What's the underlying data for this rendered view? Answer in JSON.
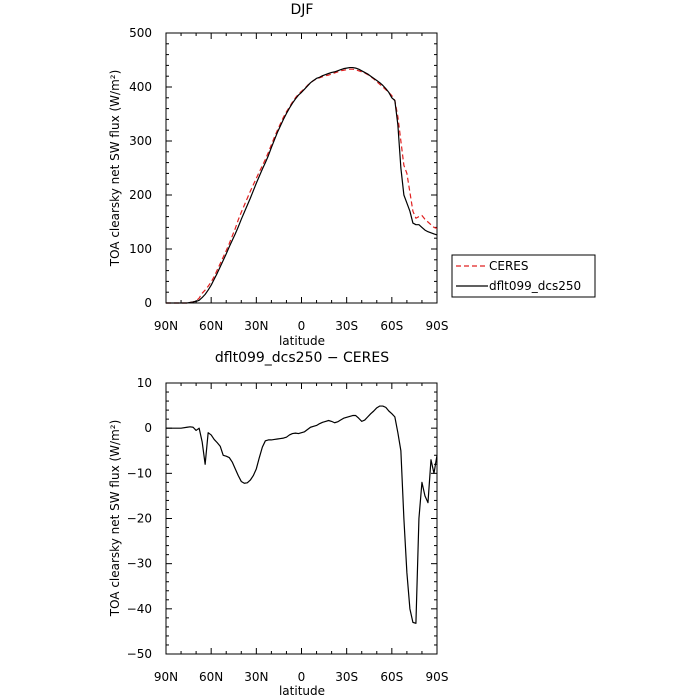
{
  "chart_data": [
    {
      "type": "line",
      "title": "DJF",
      "xlabel": "latitude",
      "ylabel": "TOA clearsky net SW flux (W/m²)",
      "ylim": [
        0,
        500
      ],
      "xlim": [
        -90,
        90
      ],
      "xticks": [
        "90N",
        "60N",
        "30N",
        "0",
        "30S",
        "60S",
        "90S"
      ],
      "yticks": [
        "0",
        "100",
        "200",
        "300",
        "400",
        "500"
      ],
      "legend_position": "right",
      "series": [
        {
          "name": "CERES",
          "color": "#e02020",
          "dash": "dashed",
          "x": [
            -90,
            -88,
            -86,
            -84,
            -82,
            -80,
            -78,
            -76,
            -74,
            -72,
            -70,
            -68,
            -66,
            -64,
            -62,
            -60,
            -58,
            -56,
            -54,
            -52,
            -50,
            -48,
            -46,
            -44,
            -42,
            -40,
            -38,
            -36,
            -34,
            -32,
            -30,
            -28,
            -26,
            -24,
            -22,
            -20,
            -18,
            -16,
            -14,
            -12,
            -10,
            -8,
            -6,
            -4,
            -2,
            0,
            2,
            4,
            6,
            8,
            10,
            12,
            14,
            16,
            18,
            20,
            22,
            24,
            26,
            28,
            30,
            32,
            34,
            36,
            38,
            40,
            42,
            44,
            46,
            48,
            50,
            52,
            54,
            56,
            58,
            60,
            62,
            64,
            66,
            68,
            70,
            72,
            74,
            76,
            78,
            80,
            82,
            84,
            86,
            88,
            90
          ],
          "y": [
            0,
            0,
            0,
            0,
            0,
            0,
            0,
            0,
            1,
            2,
            4,
            9,
            18,
            24,
            31,
            39,
            49,
            61,
            73,
            85,
            97,
            110,
            124,
            138,
            154,
            168,
            181,
            194,
            207,
            219,
            231,
            243,
            254,
            266,
            279,
            293,
            307,
            320,
            332,
            344,
            354,
            363,
            372,
            380,
            387,
            392,
            397,
            403,
            408,
            412,
            415,
            417,
            419,
            421,
            422,
            424,
            426,
            428,
            430,
            431,
            432,
            433,
            433,
            432,
            430,
            428,
            426,
            423,
            419,
            415,
            410,
            405,
            400,
            395,
            390,
            384,
            375,
            345,
            300,
            255,
            240,
            205,
            170,
            157,
            160,
            162,
            155,
            150,
            145,
            140,
            138
          ]
        },
        {
          "name": "dflt099_dcs250",
          "color": "#000000",
          "dash": "solid",
          "x": [
            -90,
            -88,
            -86,
            -84,
            -82,
            -80,
            -78,
            -76,
            -74,
            -72,
            -70,
            -68,
            -66,
            -64,
            -62,
            -60,
            -58,
            -56,
            -54,
            -52,
            -50,
            -48,
            -46,
            -44,
            -42,
            -40,
            -38,
            -36,
            -34,
            -32,
            -30,
            -28,
            -26,
            -24,
            -22,
            -20,
            -18,
            -16,
            -14,
            -12,
            -10,
            -8,
            -6,
            -4,
            -2,
            0,
            2,
            4,
            6,
            8,
            10,
            12,
            14,
            16,
            18,
            20,
            22,
            24,
            26,
            28,
            30,
            32,
            34,
            36,
            38,
            40,
            42,
            44,
            46,
            48,
            50,
            52,
            54,
            56,
            58,
            60,
            62,
            64,
            66,
            68,
            70,
            72,
            74,
            76,
            78,
            80,
            82,
            84,
            86,
            88,
            90
          ],
          "y": [
            0,
            0,
            0,
            0,
            0,
            0,
            0,
            0,
            1,
            2,
            3,
            5,
            10,
            16,
            24,
            33,
            44,
            55,
            67,
            79,
            91,
            104,
            116,
            128,
            141,
            155,
            168,
            181,
            194,
            208,
            222,
            235,
            248,
            260,
            273,
            288,
            302,
            316,
            328,
            340,
            351,
            361,
            370,
            378,
            385,
            390,
            396,
            402,
            408,
            412,
            416,
            418,
            421,
            423,
            425,
            427,
            428,
            430,
            432,
            434,
            435,
            436,
            436,
            435,
            433,
            430,
            427,
            424,
            420,
            416,
            412,
            408,
            403,
            397,
            390,
            380,
            375,
            330,
            250,
            200,
            185,
            170,
            148,
            145,
            145,
            140,
            135,
            132,
            130,
            128,
            126
          ]
        }
      ]
    },
    {
      "type": "line",
      "title": "dflt099_dcs250 − CERES",
      "xlabel": "latitude",
      "ylabel": "TOA clearsky net SW flux (W/m²)",
      "ylim": [
        -50,
        10
      ],
      "xlim": [
        -90,
        90
      ],
      "xticks": [
        "90N",
        "60N",
        "30N",
        "0",
        "30S",
        "60S",
        "90S"
      ],
      "yticks": [
        "−50",
        "−40",
        "−30",
        "−20",
        "−10",
        "0",
        "10"
      ],
      "series": [
        {
          "name": "dflt099_dcs250 − CERES",
          "color": "#000000",
          "dash": "solid",
          "x": [
            -90,
            -85,
            -80,
            -76,
            -74,
            -72,
            -70,
            -68,
            -66,
            -64,
            -62,
            -60,
            -58,
            -56,
            -54,
            -52,
            -50,
            -48,
            -46,
            -44,
            -42,
            -40,
            -38,
            -36,
            -34,
            -32,
            -30,
            -28,
            -26,
            -24,
            -22,
            -20,
            -18,
            -16,
            -14,
            -12,
            -10,
            -8,
            -6,
            -4,
            -2,
            0,
            2,
            4,
            6,
            8,
            10,
            12,
            14,
            16,
            18,
            20,
            22,
            24,
            26,
            28,
            30,
            32,
            34,
            36,
            38,
            40,
            42,
            44,
            46,
            48,
            50,
            52,
            54,
            56,
            58,
            60,
            62,
            64,
            66,
            68,
            70,
            72,
            74,
            76,
            78,
            80,
            82,
            84,
            86,
            88,
            90
          ],
          "y": [
            0,
            0,
            0,
            0.2,
            0.3,
            0.2,
            -0.5,
            0,
            -3,
            -8,
            -1,
            -1.5,
            -2.5,
            -3.2,
            -4,
            -6,
            -6.2,
            -6.5,
            -7.5,
            -9,
            -10.5,
            -11.8,
            -12.2,
            -12.1,
            -11.5,
            -10.5,
            -9,
            -6.5,
            -4.2,
            -2.8,
            -2.6,
            -2.6,
            -2.5,
            -2.4,
            -2.3,
            -2.2,
            -2,
            -1.5,
            -1.2,
            -1.1,
            -1.2,
            -1,
            -0.8,
            -0.3,
            0.2,
            0.4,
            0.6,
            1,
            1.3,
            1.5,
            1.7,
            1.5,
            1.2,
            1.4,
            1.8,
            2.2,
            2.4,
            2.6,
            2.8,
            2.8,
            2.2,
            1.5,
            1.8,
            2.5,
            3.2,
            3.8,
            4.5,
            4.9,
            4.9,
            4.6,
            3.8,
            3.2,
            2.5,
            -1,
            -5,
            -20,
            -32,
            -40,
            -43,
            -43.2,
            -20,
            -12,
            -15,
            -16.5,
            -7,
            -10,
            -6
          ]
        }
      ]
    }
  ]
}
